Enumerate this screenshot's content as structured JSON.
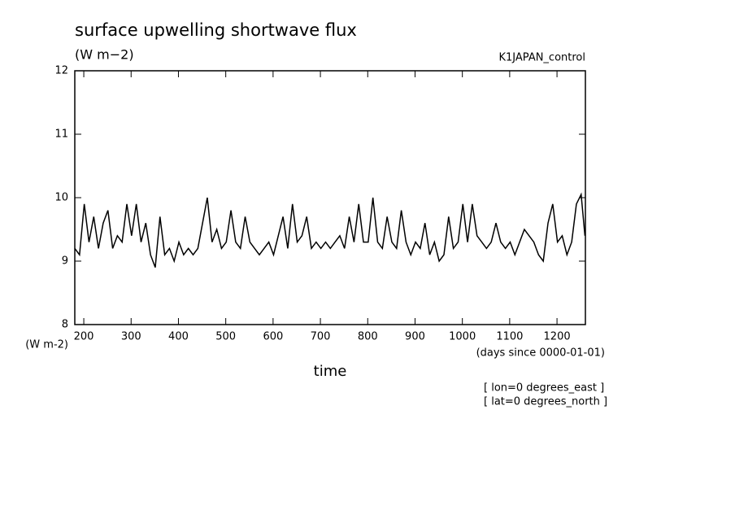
{
  "chart_data": {
    "type": "line",
    "title": "surface upwelling shortwave flux",
    "subtitle": "(W m−2)",
    "dataset_label": "K1JAPAN_control",
    "y_units_label": "(W m-2)",
    "x_units_label": "(days since 0000-01-01)",
    "x_label": "time",
    "annotations": [
      "[ lon=0 degrees_east ]",
      "[ lat=0 degrees_north ]"
    ],
    "x": [
      181,
      191,
      201,
      211,
      221,
      231,
      241,
      251,
      261,
      271,
      281,
      291,
      301,
      311,
      321,
      331,
      341,
      351,
      361,
      371,
      381,
      391,
      401,
      411,
      421,
      431,
      441,
      451,
      461,
      471,
      481,
      491,
      501,
      511,
      521,
      531,
      541,
      551,
      561,
      571,
      581,
      591,
      601,
      611,
      621,
      631,
      641,
      651,
      661,
      671,
      681,
      691,
      701,
      711,
      721,
      731,
      741,
      751,
      761,
      771,
      781,
      791,
      801,
      811,
      821,
      831,
      841,
      851,
      861,
      871,
      881,
      891,
      901,
      911,
      921,
      931,
      941,
      951,
      961,
      971,
      981,
      991,
      1001,
      1011,
      1021,
      1031,
      1041,
      1051,
      1061,
      1071,
      1081,
      1091,
      1101,
      1111,
      1121,
      1131,
      1141,
      1151,
      1161,
      1171,
      1181,
      1191,
      1201,
      1211,
      1221,
      1231,
      1241,
      1251,
      1259
    ],
    "series": [
      {
        "color": "#000000",
        "values": [
          9.2,
          9.1,
          9.9,
          9.3,
          9.7,
          9.2,
          9.6,
          9.8,
          9.2,
          9.4,
          9.3,
          9.9,
          9.4,
          9.9,
          9.3,
          9.6,
          9.1,
          8.9,
          9.7,
          9.1,
          9.2,
          9.0,
          9.3,
          9.1,
          9.2,
          9.1,
          9.2,
          9.6,
          10.0,
          9.3,
          9.5,
          9.2,
          9.3,
          9.8,
          9.3,
          9.2,
          9.7,
          9.3,
          9.2,
          9.1,
          9.2,
          9.3,
          9.1,
          9.4,
          9.7,
          9.2,
          9.9,
          9.3,
          9.4,
          9.7,
          9.2,
          9.3,
          9.2,
          9.3,
          9.2,
          9.3,
          9.4,
          9.2,
          9.7,
          9.3,
          9.9,
          9.3,
          9.3,
          10.0,
          9.3,
          9.2,
          9.7,
          9.3,
          9.2,
          9.8,
          9.3,
          9.1,
          9.3,
          9.2,
          9.6,
          9.1,
          9.3,
          9.0,
          9.1,
          9.7,
          9.2,
          9.3,
          9.9,
          9.3,
          9.9,
          9.4,
          9.3,
          9.2,
          9.3,
          9.6,
          9.3,
          9.2,
          9.3,
          9.1,
          9.3,
          9.5,
          9.4,
          9.3,
          9.1,
          9.0,
          9.6,
          9.9,
          9.3,
          9.4,
          9.1,
          9.3,
          9.9,
          10.05,
          9.4
        ]
      }
    ],
    "xlim": [
      181,
      1260
    ],
    "ylim": [
      8,
      12
    ],
    "xticks": [
      200,
      300,
      400,
      500,
      600,
      700,
      800,
      900,
      1000,
      1100,
      1200
    ],
    "yticks": [
      8,
      9,
      10,
      11,
      12
    ]
  }
}
